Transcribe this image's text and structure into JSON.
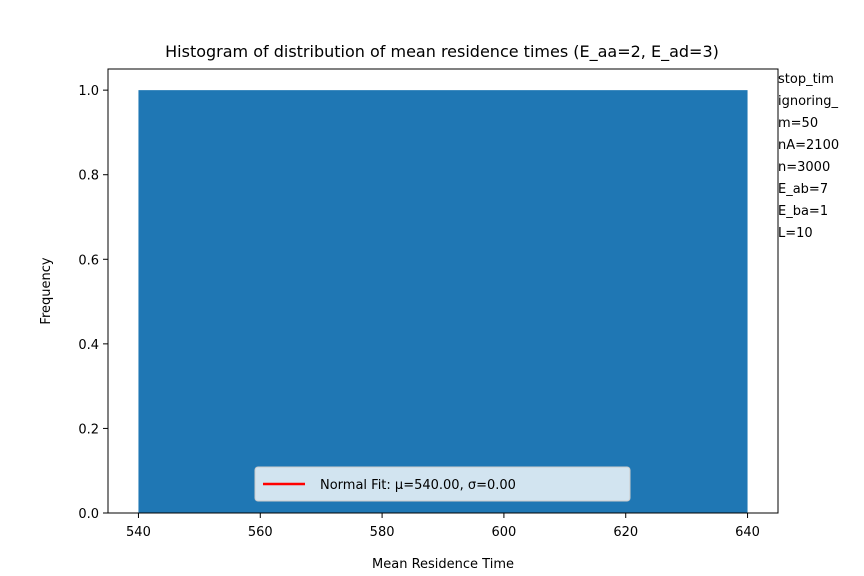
{
  "chart_data": {
    "type": "bar",
    "title": "Histogram of distribution of mean residence times (E_aa=2, E_ad=3)",
    "xlabel": "Mean Residence Time",
    "ylabel": "Frequency",
    "xlim": [
      535,
      645
    ],
    "ylim": [
      0,
      1.05
    ],
    "xticks": [
      540,
      560,
      580,
      600,
      620,
      640
    ],
    "yticks": [
      0.0,
      0.2,
      0.4,
      0.6,
      0.8,
      1.0
    ],
    "ytick_labels": [
      "0.0",
      "0.2",
      "0.4",
      "0.6",
      "0.8",
      "1.0"
    ],
    "bins": [
      {
        "x0": 540,
        "x1": 640,
        "value": 1.0
      }
    ],
    "bar_color": "#1f77b4",
    "fit_line_color": "#ff0000",
    "legend": {
      "placement": "lower center",
      "entries": [
        {
          "label": "Normal Fit: μ=540.00, σ=0.00",
          "color": "#ff0000"
        }
      ]
    },
    "side_annotations": [
      "stop_tim",
      "ignoring_",
      "m=50",
      "nA=2100",
      "n=3000",
      "E_ab=7",
      "E_ba=1",
      "L=10"
    ]
  }
}
